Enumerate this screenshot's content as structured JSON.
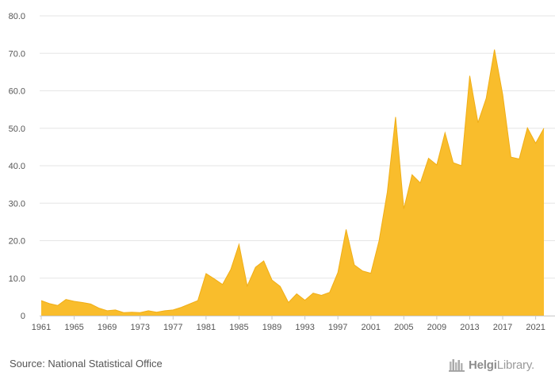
{
  "chart_data": {
    "type": "area",
    "title": "",
    "xlabel": "",
    "ylabel": "",
    "x": [
      1961,
      1962,
      1963,
      1964,
      1965,
      1966,
      1967,
      1968,
      1969,
      1970,
      1971,
      1972,
      1973,
      1974,
      1975,
      1976,
      1977,
      1978,
      1979,
      1980,
      1981,
      1982,
      1983,
      1984,
      1985,
      1986,
      1987,
      1988,
      1989,
      1990,
      1991,
      1992,
      1993,
      1994,
      1995,
      1996,
      1997,
      1998,
      1999,
      2000,
      2001,
      2002,
      2003,
      2004,
      2005,
      2006,
      2007,
      2008,
      2009,
      2010,
      2011,
      2012,
      2013,
      2014,
      2015,
      2016,
      2017,
      2018,
      2019,
      2020,
      2021,
      2022
    ],
    "series": [
      {
        "values": [
          4.0,
          3.2,
          2.7,
          4.3,
          3.8,
          3.5,
          3.1,
          2.0,
          1.3,
          1.5,
          0.8,
          0.9,
          0.8,
          1.3,
          0.9,
          1.3,
          1.5,
          2.2,
          3.1,
          4.0,
          11.2,
          9.8,
          8.3,
          12.3,
          19.0,
          7.9,
          12.9,
          14.6,
          9.5,
          7.8,
          3.5,
          5.8,
          4.1,
          6.0,
          5.4,
          6.2,
          11.5,
          23.0,
          13.5,
          11.9,
          11.3,
          20.0,
          33.0,
          53.0,
          28.5,
          37.6,
          35.4,
          42.0,
          40.2,
          48.8,
          40.8,
          40.0,
          64.0,
          51.5,
          58.0,
          71.0,
          59.0,
          42.3,
          41.8,
          50.1,
          46.0,
          50.0
        ]
      }
    ],
    "ylim": [
      0,
      80
    ],
    "yticks": [
      "0",
      "10.0",
      "20.0",
      "30.0",
      "40.0",
      "50.0",
      "60.0",
      "70.0",
      "80.0"
    ],
    "xticks": [
      "1961",
      "1965",
      "1969",
      "1973",
      "1977",
      "1981",
      "1985",
      "1989",
      "1993",
      "1997",
      "2001",
      "2005",
      "2009",
      "2013",
      "2017",
      "2021"
    ],
    "grid": true,
    "legend": "none",
    "colors": {
      "area_fill": "#f9bd2c",
      "area_stroke": "#f0ae17",
      "grid": "#e6e6e6",
      "axis": "#c8c8c8"
    }
  },
  "footer": {
    "source": "Source: National Statistical Office",
    "brand_part1": "Helgi",
    "brand_part2": "Library."
  },
  "icons": {
    "brand": "bookshelf-icon"
  }
}
